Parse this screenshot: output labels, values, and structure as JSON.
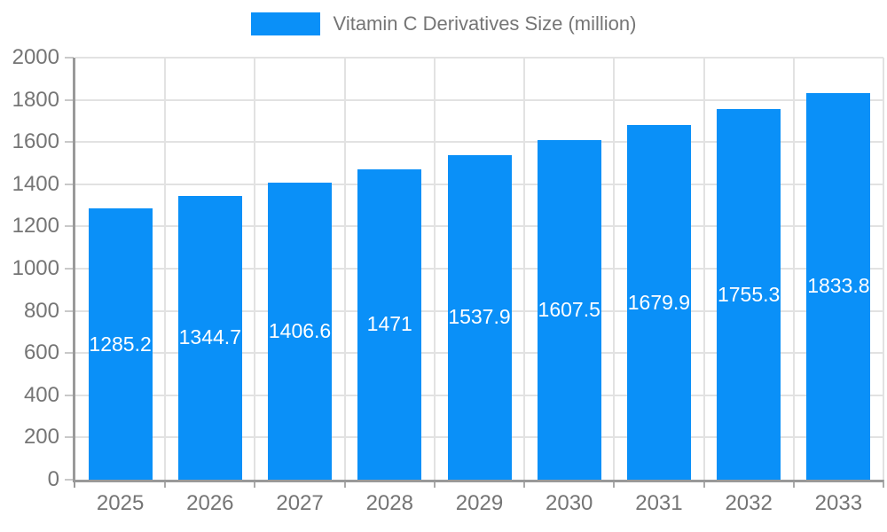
{
  "legend": {
    "label": "Vitamin C Derivatives Size (million)"
  },
  "colors": {
    "bar": "#0a90f8",
    "axis": "#999999",
    "grid": "#e2e2e2",
    "tick": "#c9c9c9",
    "axis_text": "#757575",
    "value_text": "#ffffff",
    "background": "#ffffff"
  },
  "chart_data": {
    "type": "bar",
    "title": "Vitamin C Derivatives Size (million)",
    "categories": [
      "2025",
      "2026",
      "2027",
      "2028",
      "2029",
      "2030",
      "2031",
      "2032",
      "2033"
    ],
    "values": [
      1285.2,
      1344.7,
      1406.6,
      1471,
      1537.9,
      1607.5,
      1679.9,
      1755.3,
      1833.8
    ],
    "value_labels": [
      "1285.2",
      "1344.7",
      "1406.6",
      "1471",
      "1537.9",
      "1607.5",
      "1679.9",
      "1755.3",
      "1833.8"
    ],
    "xlabel": "",
    "ylabel": "",
    "ylim": [
      0,
      2000
    ],
    "ytick_step": 200,
    "yticks": [
      0,
      200,
      400,
      600,
      800,
      1000,
      1200,
      1400,
      1600,
      1800,
      2000
    ],
    "grid": true,
    "legend_position": "top-center",
    "value_label_style": "white-centered-inside-bar"
  }
}
